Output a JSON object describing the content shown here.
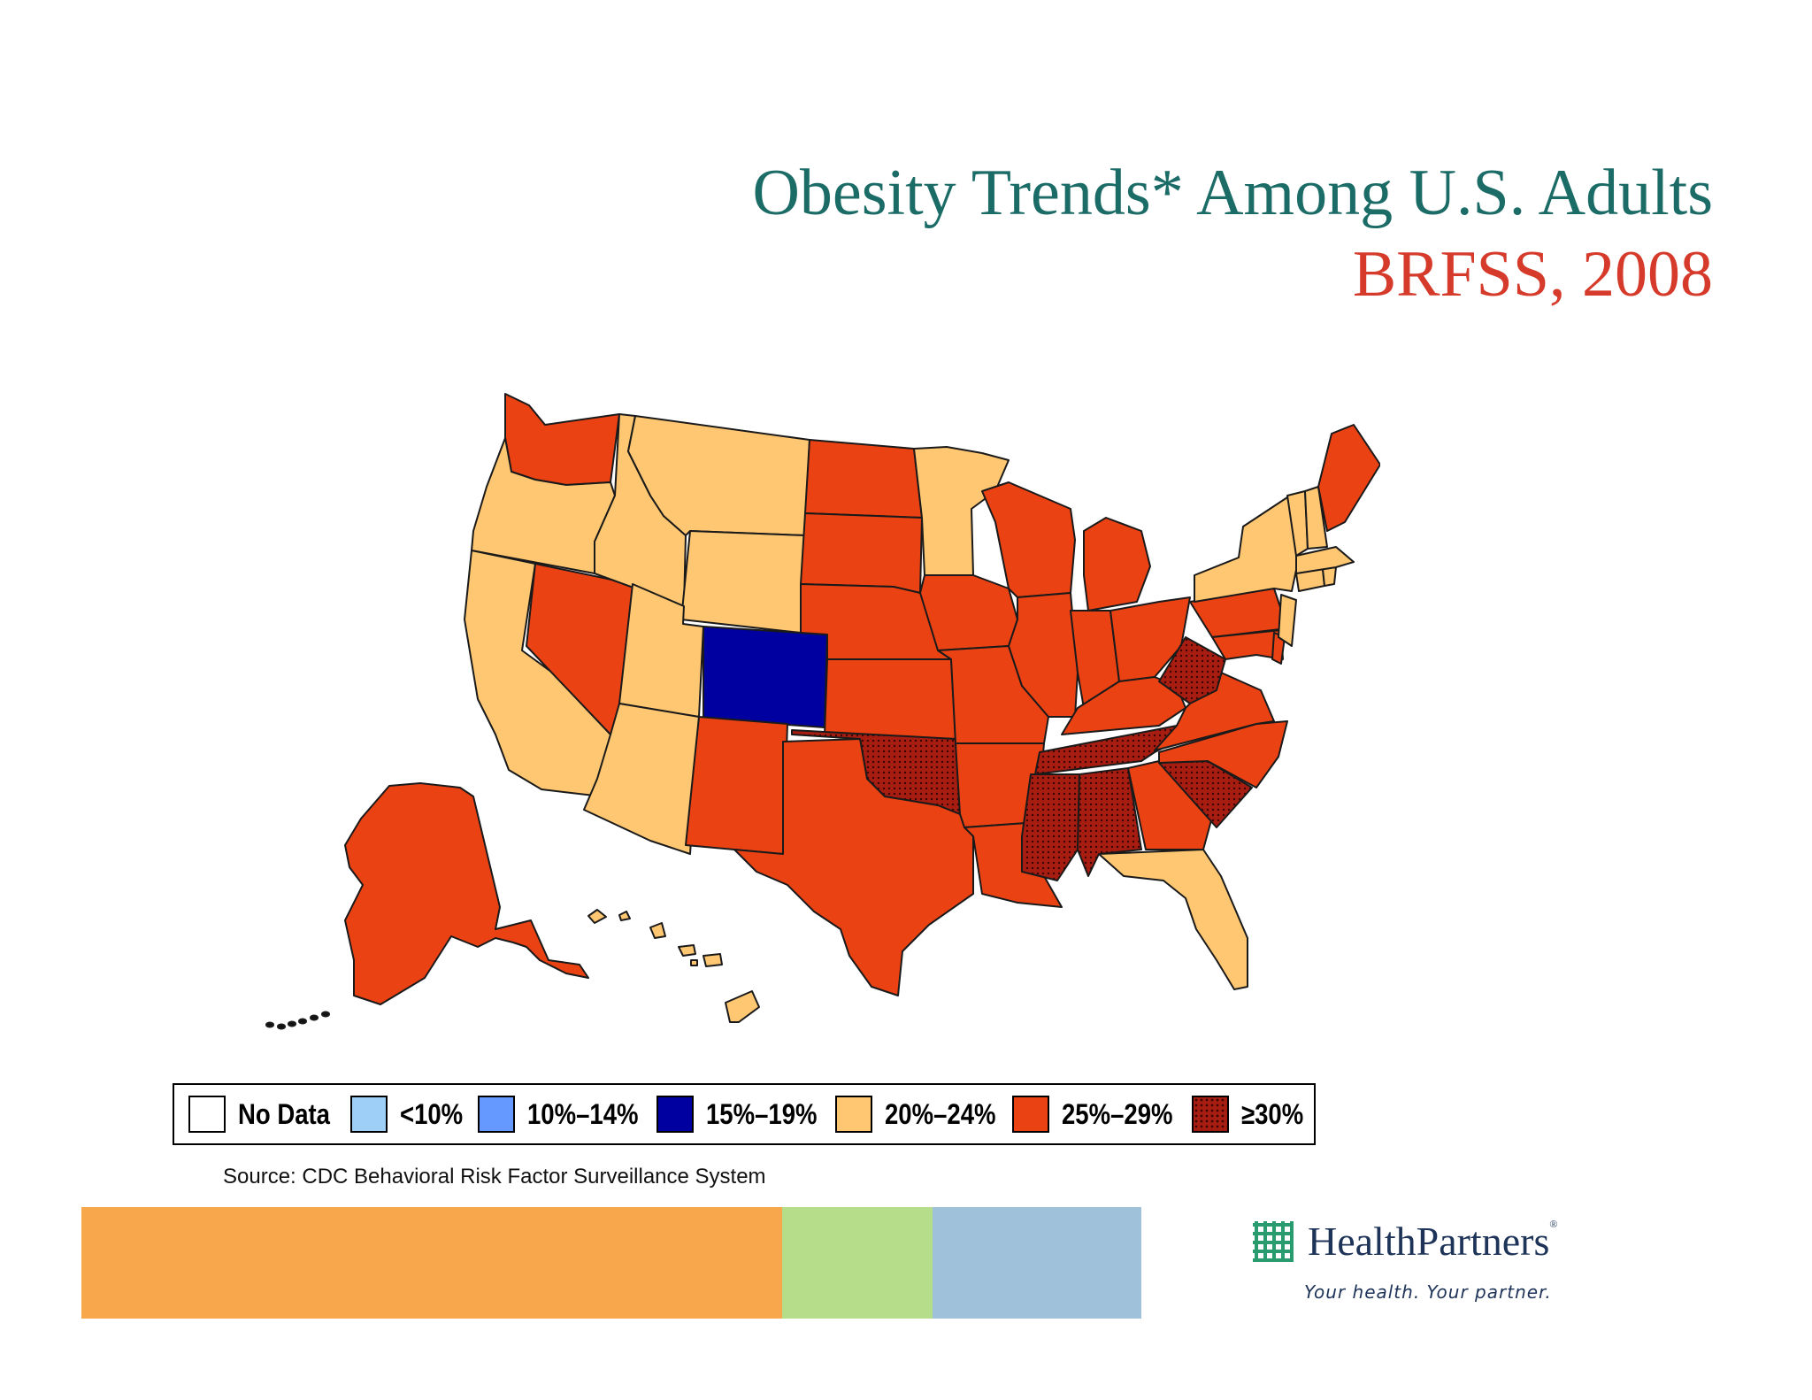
{
  "title": {
    "line1": "Obesity Trends* Among U.S. Adults",
    "line2": "BRFSS, 2008"
  },
  "legend": [
    {
      "label": "No Data",
      "color": "#ffffff",
      "pattern": "solid"
    },
    {
      "label": "<10%",
      "color": "#9ecff7",
      "pattern": "solid"
    },
    {
      "label": "10%–14%",
      "color": "#6699ff",
      "pattern": "solid"
    },
    {
      "label": "15%–19%",
      "color": "#0000a0",
      "pattern": "solid"
    },
    {
      "label": "20%–24%",
      "color": "#ffc772",
      "pattern": "solid"
    },
    {
      "label": "25%–29%",
      "color": "#eb4214",
      "pattern": "solid"
    },
    {
      "label": "≥30%",
      "color": "#a71d11",
      "pattern": "dots"
    }
  ],
  "source": "Source: CDC Behavioral Risk Factor Surveillance  System",
  "footer_bar": [
    {
      "color": "#f8a74d"
    },
    {
      "color": "#b5dd8a"
    },
    {
      "color": "#9fc1da"
    }
  ],
  "logo": {
    "name": "HealthPartners",
    "registered": "®",
    "tagline": "Your health. Your partner.",
    "color": "#1d3358",
    "icon_color": "#2a9a6f"
  },
  "map_data": {
    "regions": [
      {
        "id": "WA",
        "category": "25%–29%"
      },
      {
        "id": "OR",
        "category": "20%–24%"
      },
      {
        "id": "CA",
        "category": "20%–24%"
      },
      {
        "id": "NV",
        "category": "25%–29%"
      },
      {
        "id": "ID",
        "category": "20%–24%"
      },
      {
        "id": "MT",
        "category": "20%–24%"
      },
      {
        "id": "WY",
        "category": "20%–24%"
      },
      {
        "id": "UT",
        "category": "20%–24%"
      },
      {
        "id": "AZ",
        "category": "20%–24%"
      },
      {
        "id": "CO",
        "category": "15%–19%"
      },
      {
        "id": "NM",
        "category": "25%–29%"
      },
      {
        "id": "ND",
        "category": "25%–29%"
      },
      {
        "id": "SD",
        "category": "25%–29%"
      },
      {
        "id": "NE",
        "category": "25%–29%"
      },
      {
        "id": "KS",
        "category": "25%–29%"
      },
      {
        "id": "OK",
        "category": "≥30%"
      },
      {
        "id": "TX",
        "category": "25%–29%"
      },
      {
        "id": "MN",
        "category": "20%–24%"
      },
      {
        "id": "IA",
        "category": "25%–29%"
      },
      {
        "id": "MO",
        "category": "25%–29%"
      },
      {
        "id": "AR",
        "category": "25%–29%"
      },
      {
        "id": "LA",
        "category": "25%–29%"
      },
      {
        "id": "WI",
        "category": "25%–29%"
      },
      {
        "id": "IL",
        "category": "25%–29%"
      },
      {
        "id": "MI",
        "category": "25%–29%"
      },
      {
        "id": "IN",
        "category": "25%–29%"
      },
      {
        "id": "OH",
        "category": "25%–29%"
      },
      {
        "id": "KY",
        "category": "25%–29%"
      },
      {
        "id": "TN",
        "category": "≥30%"
      },
      {
        "id": "MS",
        "category": "≥30%"
      },
      {
        "id": "AL",
        "category": "≥30%"
      },
      {
        "id": "GA",
        "category": "25%–29%"
      },
      {
        "id": "FL",
        "category": "20%–24%"
      },
      {
        "id": "SC",
        "category": "≥30%"
      },
      {
        "id": "NC",
        "category": "25%–29%"
      },
      {
        "id": "VA",
        "category": "25%–29%"
      },
      {
        "id": "WV",
        "category": "≥30%"
      },
      {
        "id": "PA",
        "category": "25%–29%"
      },
      {
        "id": "NY",
        "category": "20%–24%"
      },
      {
        "id": "MD",
        "category": "25%–29%"
      },
      {
        "id": "DE",
        "category": "25%–29%"
      },
      {
        "id": "NJ",
        "category": "20%–24%"
      },
      {
        "id": "CT",
        "category": "20%–24%"
      },
      {
        "id": "RI",
        "category": "20%–24%"
      },
      {
        "id": "MA",
        "category": "20%–24%"
      },
      {
        "id": "VT",
        "category": "20%–24%"
      },
      {
        "id": "NH",
        "category": "20%–24%"
      },
      {
        "id": "ME",
        "category": "25%–29%"
      },
      {
        "id": "AK",
        "category": "25%–29%"
      },
      {
        "id": "HI",
        "category": "20%–24%"
      }
    ]
  }
}
